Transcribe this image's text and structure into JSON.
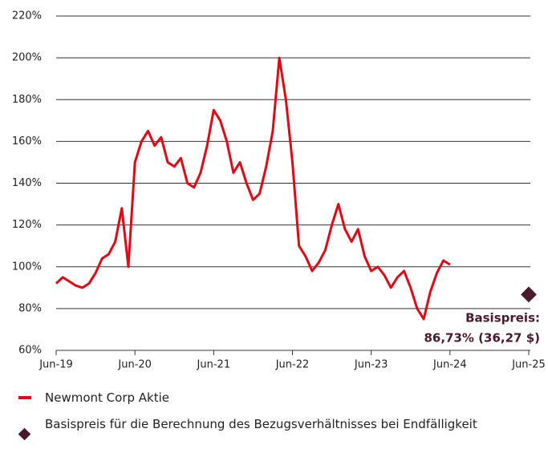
{
  "chart_data": {
    "type": "line",
    "x": [
      "Jun-19",
      "Jul-19",
      "Aug-19",
      "Sep-19",
      "Oct-19",
      "Nov-19",
      "Dec-19",
      "Jan-20",
      "Feb-20",
      "Mar-20",
      "Apr-20",
      "May-20",
      "Jun-20",
      "Jul-20",
      "Aug-20",
      "Sep-20",
      "Oct-20",
      "Nov-20",
      "Dec-20",
      "Jan-21",
      "Feb-21",
      "Mar-21",
      "Apr-21",
      "May-21",
      "Jun-21",
      "Jul-21",
      "Aug-21",
      "Sep-21",
      "Oct-21",
      "Nov-21",
      "Dec-21",
      "Jan-22",
      "Feb-22",
      "Mar-22",
      "Apr-22",
      "May-22",
      "Jun-22",
      "Jul-22",
      "Aug-22",
      "Sep-22",
      "Oct-22",
      "Nov-22",
      "Dec-22",
      "Jan-23",
      "Feb-23",
      "Mar-23",
      "Apr-23",
      "May-23",
      "Jun-23",
      "Jul-23",
      "Aug-23",
      "Sep-23",
      "Oct-23",
      "Nov-23",
      "Dec-23",
      "Jan-24",
      "Feb-24",
      "Mar-24",
      "Apr-24",
      "May-24",
      "Jun-24"
    ],
    "series": [
      {
        "name": "Newmont Corp Aktie",
        "color": "#e30613",
        "values": [
          92,
          95,
          93,
          91,
          90,
          92,
          97,
          104,
          106,
          112,
          128,
          100,
          150,
          160,
          165,
          158,
          162,
          150,
          148,
          152,
          140,
          138,
          145,
          158,
          175,
          170,
          160,
          145,
          150,
          140,
          132,
          135,
          148,
          165,
          200,
          180,
          150,
          110,
          105,
          98,
          102,
          108,
          120,
          130,
          118,
          112,
          118,
          105,
          98,
          100,
          96,
          90,
          95,
          98,
          90,
          80,
          75,
          88,
          97,
          103,
          101
        ]
      }
    ],
    "strike": {
      "name": "Basispreis für die Berechnung des Bezugsverhältnisses bei Endfälligkeit",
      "x": "Jun-25",
      "value": 86.73,
      "color": "#4a1a2c"
    },
    "annotation": [
      "Basispreis:",
      "86,73% (36,27 $)"
    ],
    "xlim": [
      "Jun-19",
      "Jun-25"
    ],
    "xticks": [
      "Jun-19",
      "Jun-20",
      "Jun-21",
      "Jun-22",
      "Jun-23",
      "Jun-24",
      "Jun-25"
    ],
    "ylim": [
      60,
      220
    ],
    "yticks": [
      {
        "value": 60,
        "label": "60%"
      },
      {
        "value": 80,
        "label": "80%"
      },
      {
        "value": 100,
        "label": "100%"
      },
      {
        "value": 120,
        "label": "120%"
      },
      {
        "value": 140,
        "label": "140%"
      },
      {
        "value": 160,
        "label": "160%"
      },
      {
        "value": 180,
        "label": "180%"
      },
      {
        "value": 200,
        "label": "200%"
      },
      {
        "value": 220,
        "label": "220%"
      }
    ],
    "grid": true
  }
}
